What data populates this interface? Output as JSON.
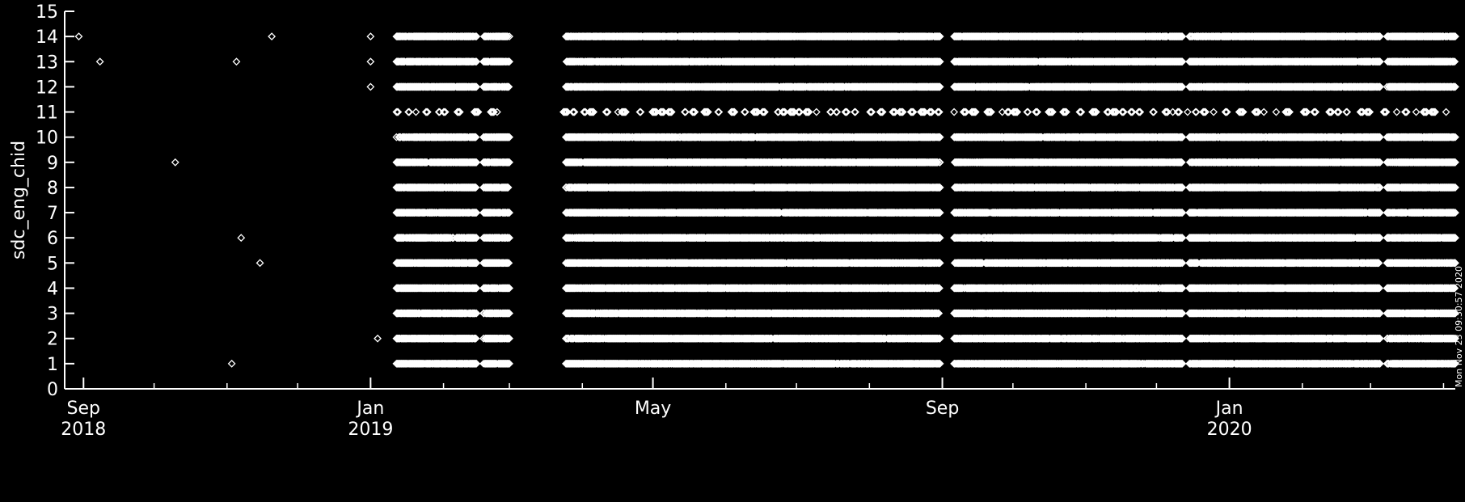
{
  "chart_data": {
    "type": "scatter",
    "ylabel": "sdc_eng_chid",
    "ylim": [
      0,
      15
    ],
    "yticks": [
      0,
      1,
      2,
      3,
      4,
      5,
      6,
      7,
      8,
      9,
      10,
      11,
      12,
      13,
      14,
      15
    ],
    "xlim": [
      "2018-08-24",
      "2020-04-06"
    ],
    "xticks": [
      {
        "date": "2018-09-01",
        "label": "Sep",
        "sublabel": "2018"
      },
      {
        "date": "2019-01-01",
        "label": "Jan",
        "sublabel": "2019"
      },
      {
        "date": "2019-05-01",
        "label": "May",
        "sublabel": ""
      },
      {
        "date": "2019-09-01",
        "label": "Sep",
        "sublabel": ""
      },
      {
        "date": "2020-01-01",
        "label": "Jan",
        "sublabel": "2020"
      }
    ],
    "marker": "diamond",
    "marker_color": "#ffffff",
    "background_color": "#000000",
    "grid": false,
    "isolated_points": [
      {
        "x": "2018-08-30",
        "y": 14
      },
      {
        "x": "2018-09-08",
        "y": 13
      },
      {
        "x": "2018-10-10",
        "y": 9
      },
      {
        "x": "2018-11-05",
        "y": 13
      },
      {
        "x": "2018-11-07",
        "y": 6
      },
      {
        "x": "2018-11-15",
        "y": 5
      },
      {
        "x": "2018-11-20",
        "y": 14
      },
      {
        "x": "2018-11-03",
        "y": 1
      },
      {
        "x": "2019-01-01",
        "y": 14
      },
      {
        "x": "2019-01-01",
        "y": 13
      },
      {
        "x": "2019-01-01",
        "y": 12
      },
      {
        "x": "2019-01-04",
        "y": 2
      }
    ],
    "dense_runs": [
      {
        "start": "2019-01-12",
        "end": "2019-02-15",
        "channels": [
          1,
          2,
          3,
          4,
          5,
          6,
          7,
          8,
          9,
          10,
          12,
          13,
          14
        ]
      },
      {
        "start": "2019-02-18",
        "end": "2019-03-01",
        "channels": [
          1,
          2,
          3,
          4,
          5,
          6,
          7,
          8,
          9,
          10,
          12,
          13,
          14
        ]
      },
      {
        "start": "2019-03-25",
        "end": "2019-08-31",
        "channels": [
          1,
          2,
          3,
          4,
          5,
          6,
          7,
          8,
          9,
          10,
          12,
          13,
          14
        ]
      },
      {
        "start": "2019-09-06",
        "end": "2019-12-12",
        "channels": [
          1,
          2,
          3,
          4,
          5,
          6,
          7,
          8,
          9,
          10,
          12,
          13,
          14
        ]
      },
      {
        "start": "2019-12-15",
        "end": "2020-03-05",
        "channels": [
          1,
          2,
          3,
          4,
          5,
          6,
          7,
          8,
          9,
          10,
          12,
          13,
          14
        ]
      },
      {
        "start": "2020-03-08",
        "end": "2020-04-06",
        "channels": [
          1,
          2,
          3,
          4,
          5,
          6,
          7,
          8,
          9,
          10,
          12,
          13,
          14
        ]
      }
    ],
    "sparse_runs": [
      {
        "start": "2019-01-12",
        "end": "2019-03-01",
        "channels": [
          11
        ]
      },
      {
        "start": "2019-03-24",
        "end": "2019-08-31",
        "channels": [
          11
        ]
      },
      {
        "start": "2019-09-06",
        "end": "2020-04-06",
        "channels": [
          11
        ]
      }
    ]
  },
  "timestamp": "Mon Nov 23 09:30:57 2020"
}
